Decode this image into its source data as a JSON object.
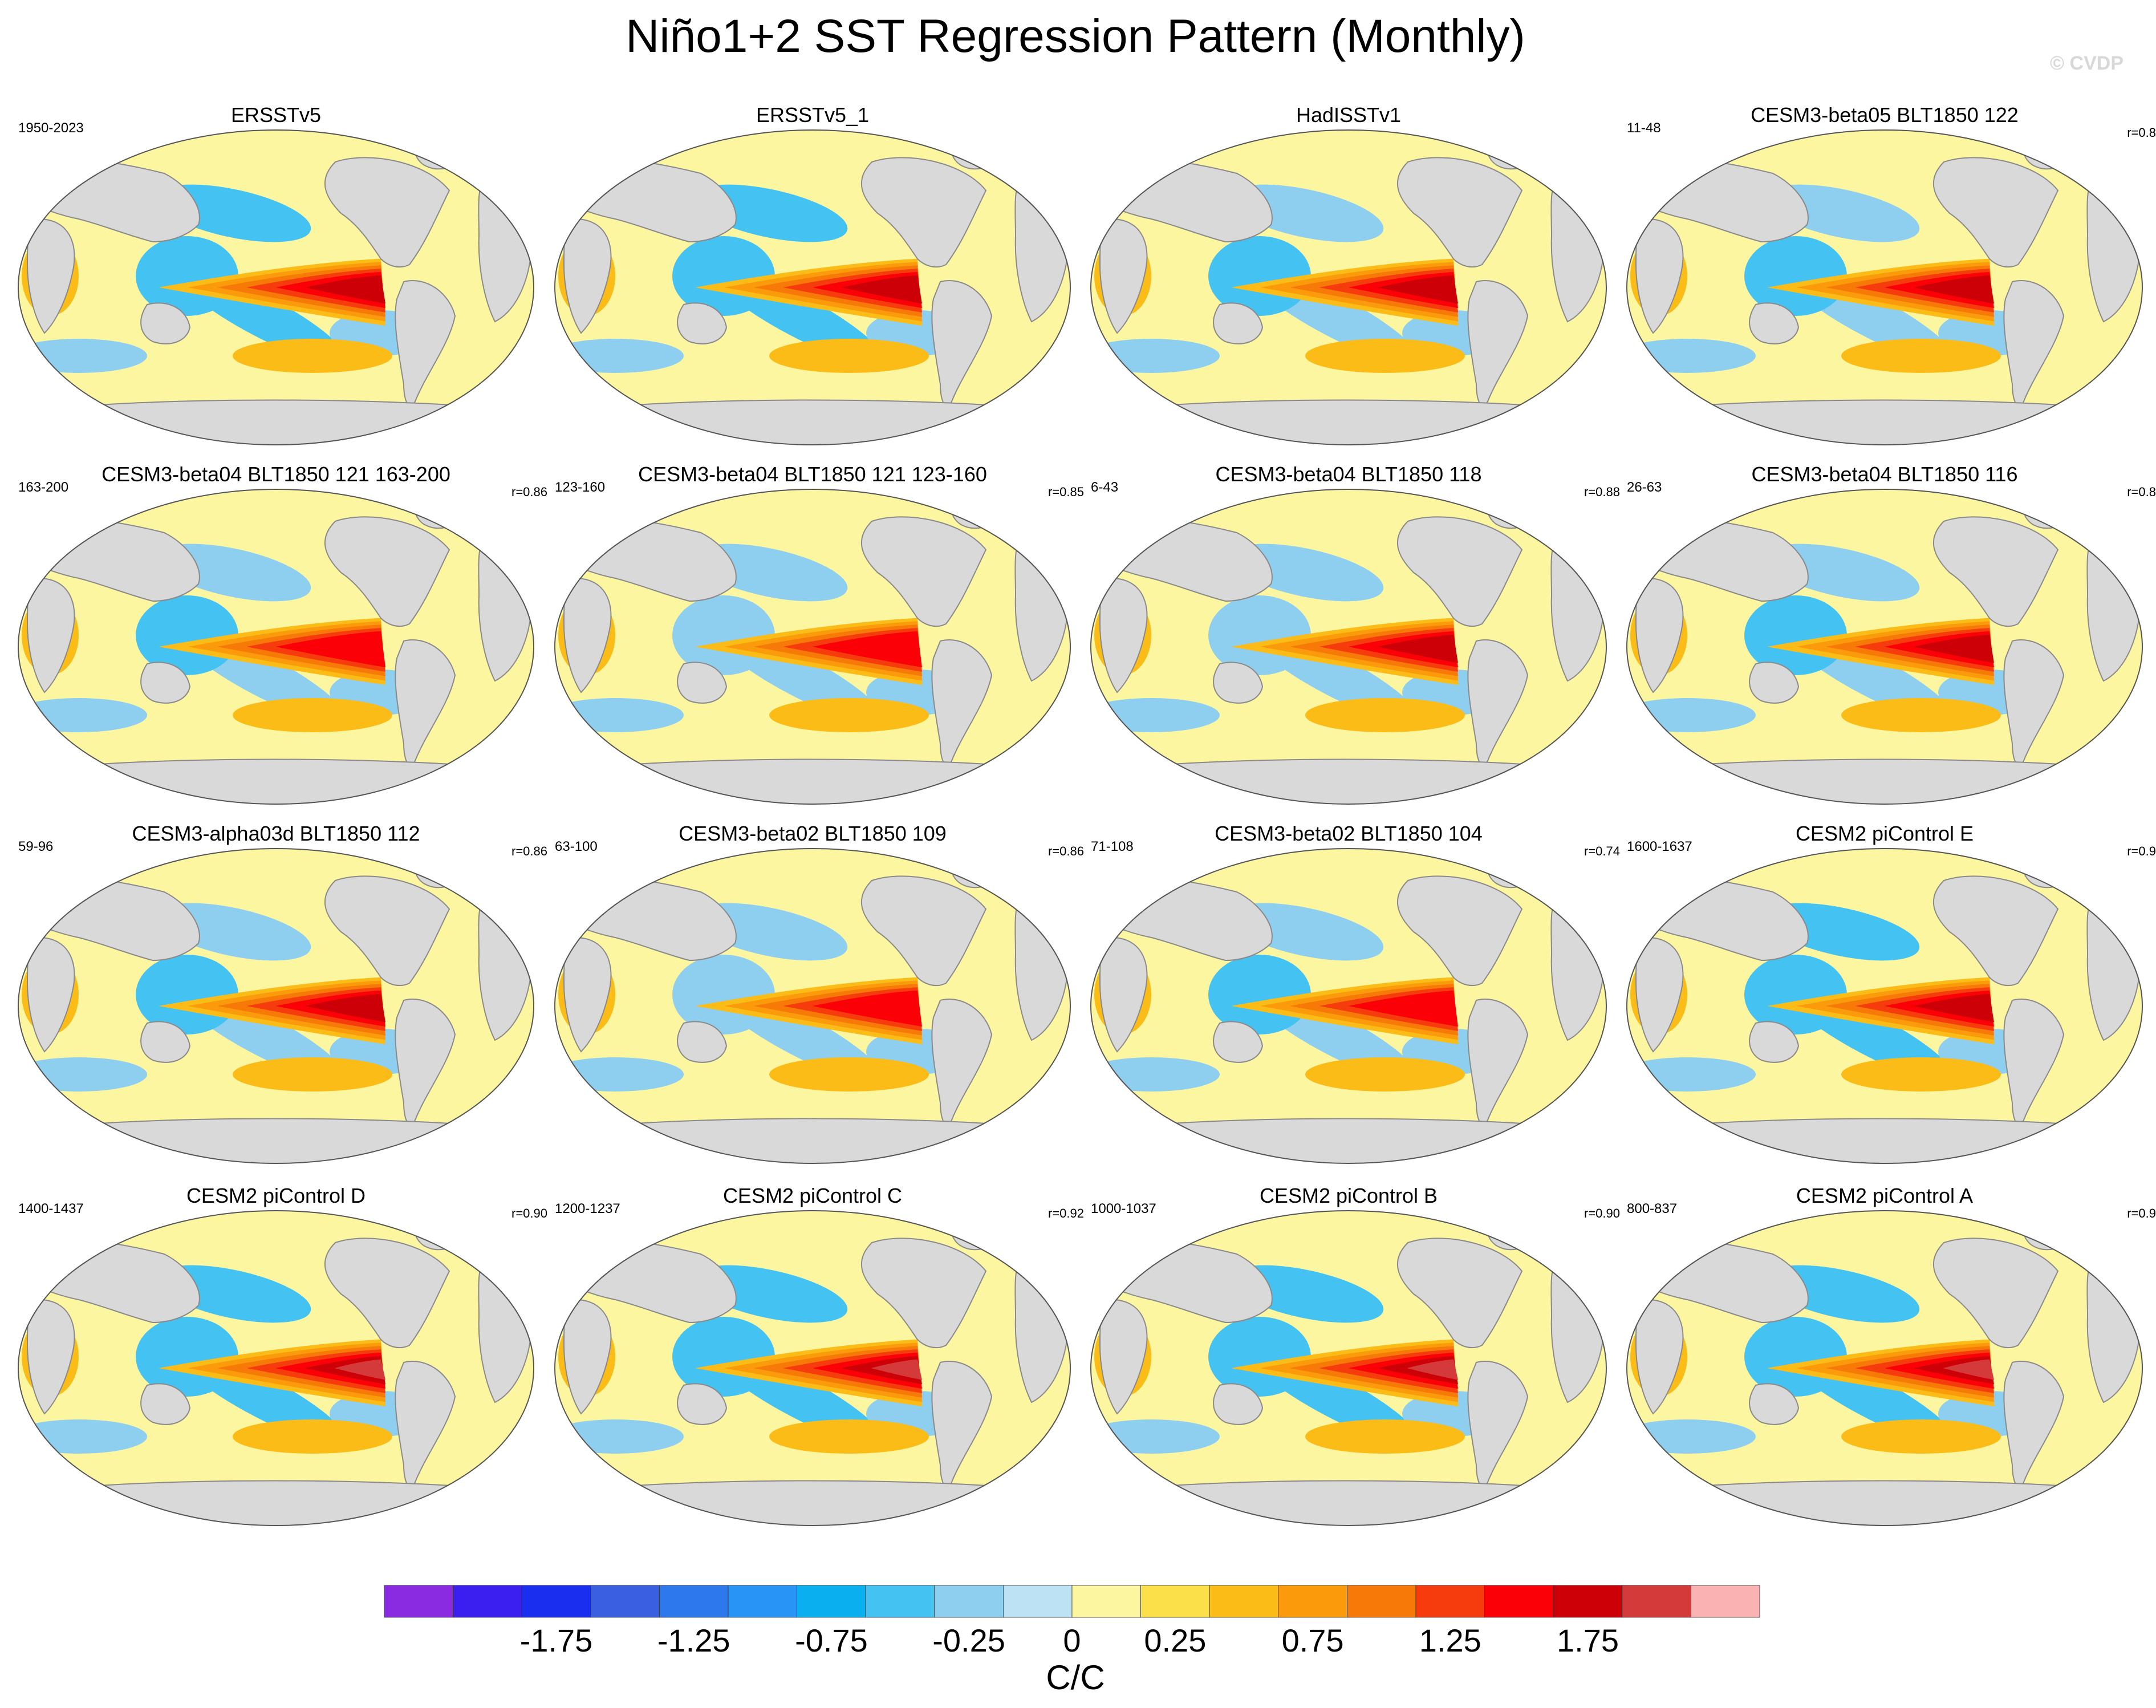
{
  "title": "Niño1+2 SST Regression Pattern (Monthly)",
  "watermark": "© CVDP",
  "colors": {
    "land": "#d9d9d9",
    "coast": "#8a8a8a",
    "levels": [
      "#8a2be2",
      "#3a1ff0",
      "#1a2ef0",
      "#3a5fe0",
      "#2e78ee",
      "#2894f5",
      "#0aafef",
      "#44c2f2",
      "#8ecff0",
      "#bde2f3",
      "#fdf6a0",
      "#fce04a",
      "#fbbc17",
      "#fb9a0b",
      "#f77a08",
      "#f63c0c",
      "#fb0006",
      "#cc0006",
      "#d53a3a",
      "#fbb2b2"
    ]
  },
  "colorbar": {
    "ticks": [
      "-1.75",
      "-1.25",
      "-0.75",
      "-0.25",
      "0",
      "0.25",
      "0.75",
      "1.25",
      "1.75"
    ],
    "units": "C/C"
  },
  "chart_data": {
    "type": "heatmap",
    "title": "Niño1+2 SST Regression Pattern (Monthly)",
    "units": "C/C",
    "contour_levels": [
      -2.0,
      -1.75,
      -1.5,
      -1.25,
      -1.0,
      -0.75,
      -0.5,
      -0.25,
      -0.1,
      0,
      0.1,
      0.25,
      0.5,
      0.75,
      1.0,
      1.25,
      1.5,
      1.75,
      2.0
    ],
    "panels": [
      {
        "title": "ERSSTv5",
        "years": "1950-2023",
        "corr": "",
        "peak": 1.6,
        "west": -0.4
      },
      {
        "title": "ERSSTv5_1",
        "years": "",
        "corr": "",
        "peak": 1.6,
        "west": -0.4
      },
      {
        "title": "HadISSTv1",
        "years": "",
        "corr": "",
        "peak": 1.5,
        "west": -0.35
      },
      {
        "title": "CESM3-beta05 BLT1850 122",
        "years": "11-48",
        "corr": "r=0.8",
        "peak": 1.5,
        "west": -0.3
      },
      {
        "title": "CESM3-beta04 BLT1850 121 163-200",
        "years": "163-200",
        "corr": "r=0.86",
        "peak": 1.4,
        "west": -0.3
      },
      {
        "title": "CESM3-beta04 BLT1850 121 123-160",
        "years": "123-160",
        "corr": "r=0.85",
        "peak": 1.4,
        "west": -0.25
      },
      {
        "title": "CESM3-beta04 BLT1850 118",
        "years": "6-43",
        "corr": "r=0.88",
        "peak": 1.5,
        "west": -0.25
      },
      {
        "title": "CESM3-beta04 BLT1850 116",
        "years": "26-63",
        "corr": "r=0.8",
        "peak": 1.5,
        "west": -0.3
      },
      {
        "title": "CESM3-alpha03d BLT1850 112",
        "years": "59-96",
        "corr": "r=0.86",
        "peak": 1.6,
        "west": -0.3
      },
      {
        "title": "CESM3-beta02 BLT1850 109",
        "years": "63-100",
        "corr": "r=0.86",
        "peak": 1.4,
        "west": -0.25
      },
      {
        "title": "CESM3-beta02 BLT1850 104",
        "years": "71-108",
        "corr": "r=0.74",
        "peak": 1.4,
        "west": -0.3
      },
      {
        "title": "CESM2 piControl E",
        "years": "1600-1637",
        "corr": "r=0.9",
        "peak": 1.7,
        "west": -0.5
      },
      {
        "title": "CESM2 piControl D",
        "years": "1400-1437",
        "corr": "r=0.90",
        "peak": 1.8,
        "west": -0.5
      },
      {
        "title": "CESM2 piControl C",
        "years": "1200-1237",
        "corr": "r=0.92",
        "peak": 1.8,
        "west": -0.5
      },
      {
        "title": "CESM2 piControl B",
        "years": "1000-1037",
        "corr": "r=0.90",
        "peak": 1.8,
        "west": -0.5
      },
      {
        "title": "CESM2 piControl A",
        "years": "800-837",
        "corr": "r=0.9",
        "peak": 1.8,
        "west": -0.5
      }
    ]
  }
}
